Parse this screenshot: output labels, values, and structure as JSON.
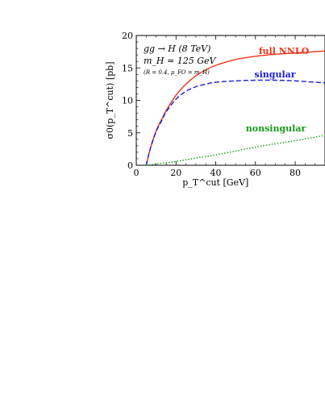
{
  "chart_data": {
    "type": "line",
    "xlabel": "p_T^cut [GeV]",
    "ylabel": "σ0(p_T^cut) [pb]",
    "xlim": [
      0,
      95
    ],
    "ylim": [
      0,
      20
    ],
    "x_ticks": [
      "0",
      "20",
      "40",
      "60",
      "80"
    ],
    "y_ticks": [
      "0",
      "5",
      "10",
      "15",
      "20"
    ],
    "annotations": [
      "gg → H (8 TeV)",
      "m_H = 125 GeV",
      "(R = 0.4, μ_FO = m_H)"
    ],
    "series": [
      {
        "name": "full NNLO",
        "color": "#e8361a",
        "style": "solid",
        "x": [
          5,
          7,
          10,
          13,
          15,
          20,
          25,
          30,
          35,
          40,
          50,
          60,
          70,
          80,
          95
        ],
        "y": [
          0.0,
          2.5,
          5.3,
          7.2,
          8.4,
          10.8,
          12.5,
          13.8,
          14.7,
          15.4,
          16.3,
          16.8,
          17.1,
          17.3,
          17.6
        ]
      },
      {
        "name": "singular",
        "color": "#1a1adc",
        "style": "dashed",
        "x": [
          5,
          7,
          10,
          13,
          15,
          20,
          25,
          30,
          35,
          40,
          50,
          60,
          70,
          80,
          95
        ],
        "y": [
          0.0,
          2.5,
          5.2,
          7.0,
          8.2,
          10.2,
          11.4,
          12.1,
          12.5,
          12.8,
          13.0,
          13.1,
          13.1,
          13.0,
          12.7
        ]
      },
      {
        "name": "nonsingular",
        "color": "#1a9a1a",
        "style": "dotted",
        "x": [
          5,
          10,
          20,
          30,
          40,
          50,
          60,
          70,
          80,
          95
        ],
        "y": [
          0.0,
          0.2,
          0.6,
          1.1,
          1.6,
          2.2,
          2.8,
          3.3,
          3.8,
          4.6
        ]
      }
    ]
  }
}
